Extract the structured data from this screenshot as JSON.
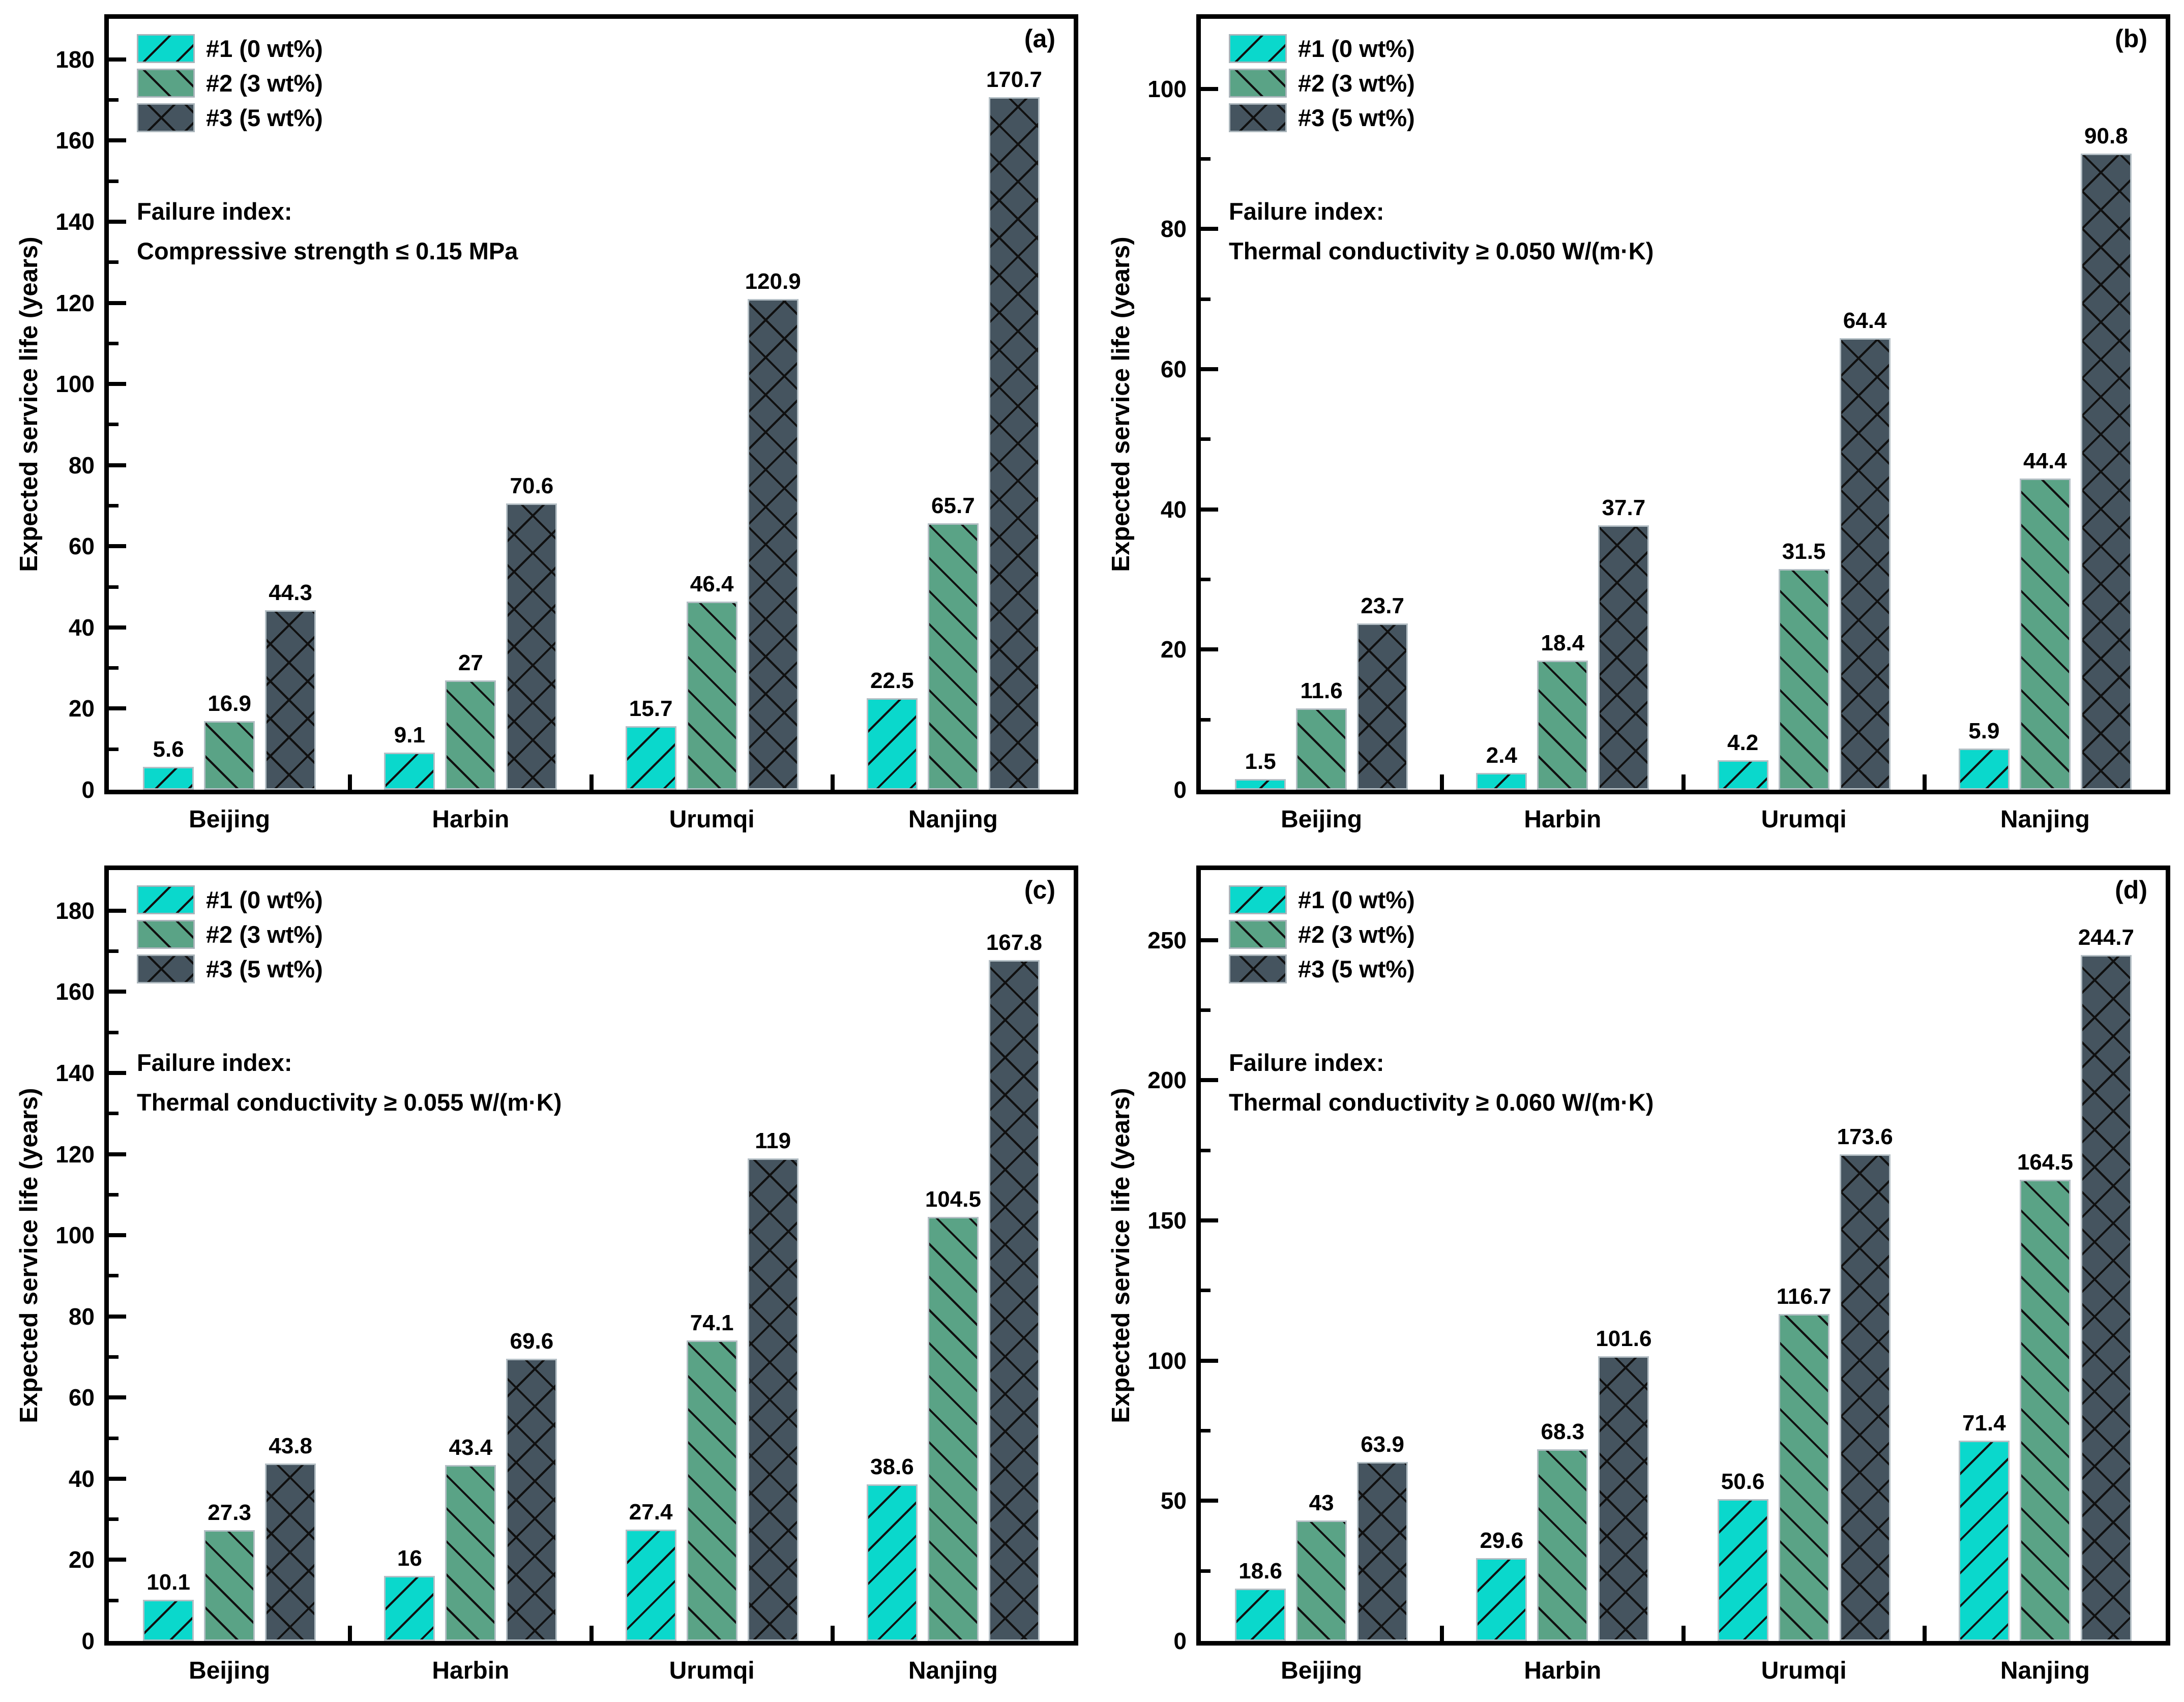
{
  "figure": {
    "ylabel": "Expected service life (years)",
    "categories": [
      "Beijing",
      "Harbin",
      "Urumqi",
      "Nanjing"
    ],
    "legend": [
      {
        "label": "#1 (0 wt%)",
        "color": "#0ad8cc",
        "hatch": "forward-diagonal"
      },
      {
        "label": "#2 (3 wt%)",
        "color": "#5aa386",
        "hatch": "backward-diagonal"
      },
      {
        "label": "#3 (5 wt%)",
        "color": "#45545f",
        "hatch": "crosshatch"
      }
    ],
    "colors": {
      "series1": "#0ad8cc",
      "series2": "#5aa386",
      "series3": "#45545f",
      "bar_edge": "#b4bfc5",
      "hatch_line": "#101010",
      "axis": "#000000",
      "background": "#ffffff"
    }
  },
  "chart_data": [
    {
      "type": "bar",
      "panel_label": "(a)",
      "annotation": [
        "Failure index:",
        "Compressive strength ≤ 0.15 MPa"
      ],
      "ylabel": "Expected service life (years)",
      "categories": [
        "Beijing",
        "Harbin",
        "Urumqi",
        "Nanjing"
      ],
      "ylim": [
        0,
        190
      ],
      "ytick_step": 20,
      "ytick_label_max": 180,
      "minor_tick_step": 10,
      "grid": false,
      "legend_position": "top-left",
      "series": [
        {
          "name": "#1 (0 wt%)",
          "values": [
            5.6,
            9.1,
            15.7,
            22.5
          ]
        },
        {
          "name": "#2 (3 wt%)",
          "values": [
            16.9,
            27,
            46.4,
            65.7
          ]
        },
        {
          "name": "#3 (5 wt%)",
          "values": [
            44.3,
            70.6,
            120.9,
            170.7
          ]
        }
      ]
    },
    {
      "type": "bar",
      "panel_label": "(b)",
      "annotation": [
        "Failure index:",
        "Thermal conductivity ≥ 0.050 W/(m·K)"
      ],
      "ylabel": "Expected service life (years)",
      "categories": [
        "Beijing",
        "Harbin",
        "Urumqi",
        "Nanjing"
      ],
      "ylim": [
        0,
        110
      ],
      "ytick_step": 20,
      "ytick_label_max": 100,
      "minor_tick_step": 10,
      "grid": false,
      "legend_position": "top-left",
      "series": [
        {
          "name": "#1 (0 wt%)",
          "values": [
            1.5,
            2.4,
            4.2,
            5.9
          ]
        },
        {
          "name": "#2 (3 wt%)",
          "values": [
            11.6,
            18.4,
            31.5,
            44.4
          ]
        },
        {
          "name": "#3 (5 wt%)",
          "values": [
            23.7,
            37.7,
            64.4,
            90.8
          ]
        }
      ]
    },
    {
      "type": "bar",
      "panel_label": "(c)",
      "annotation": [
        "Failure index:",
        "Thermal conductivity ≥ 0.055 W/(m·K)"
      ],
      "ylabel": "Expected service life (years)",
      "categories": [
        "Beijing",
        "Harbin",
        "Urumqi",
        "Nanjing"
      ],
      "ylim": [
        0,
        190
      ],
      "ytick_step": 20,
      "ytick_label_max": 180,
      "minor_tick_step": 10,
      "grid": false,
      "legend_position": "top-left",
      "series": [
        {
          "name": "#1 (0 wt%)",
          "values": [
            10.1,
            16,
            27.4,
            38.6
          ]
        },
        {
          "name": "#2 (3 wt%)",
          "values": [
            27.3,
            43.4,
            74.1,
            104.5
          ]
        },
        {
          "name": "#3 (5 wt%)",
          "values": [
            43.8,
            69.6,
            119,
            167.8
          ]
        }
      ]
    },
    {
      "type": "bar",
      "panel_label": "(d)",
      "annotation": [
        "Failure index:",
        "Thermal conductivity ≥ 0.060 W/(m·K)"
      ],
      "ylabel": "Expected service life (years)",
      "categories": [
        "Beijing",
        "Harbin",
        "Urumqi",
        "Nanjing"
      ],
      "ylim": [
        0,
        275
      ],
      "ytick_step": 50,
      "ytick_label_max": 250,
      "minor_tick_step": 25,
      "grid": false,
      "legend_position": "top-left",
      "series": [
        {
          "name": "#1 (0 wt%)",
          "values": [
            18.6,
            29.6,
            50.6,
            71.4
          ]
        },
        {
          "name": "#2 (3 wt%)",
          "values": [
            43,
            68.3,
            116.7,
            164.5
          ]
        },
        {
          "name": "#3 (5 wt%)",
          "values": [
            63.9,
            101.6,
            173.6,
            244.7
          ]
        }
      ]
    }
  ]
}
